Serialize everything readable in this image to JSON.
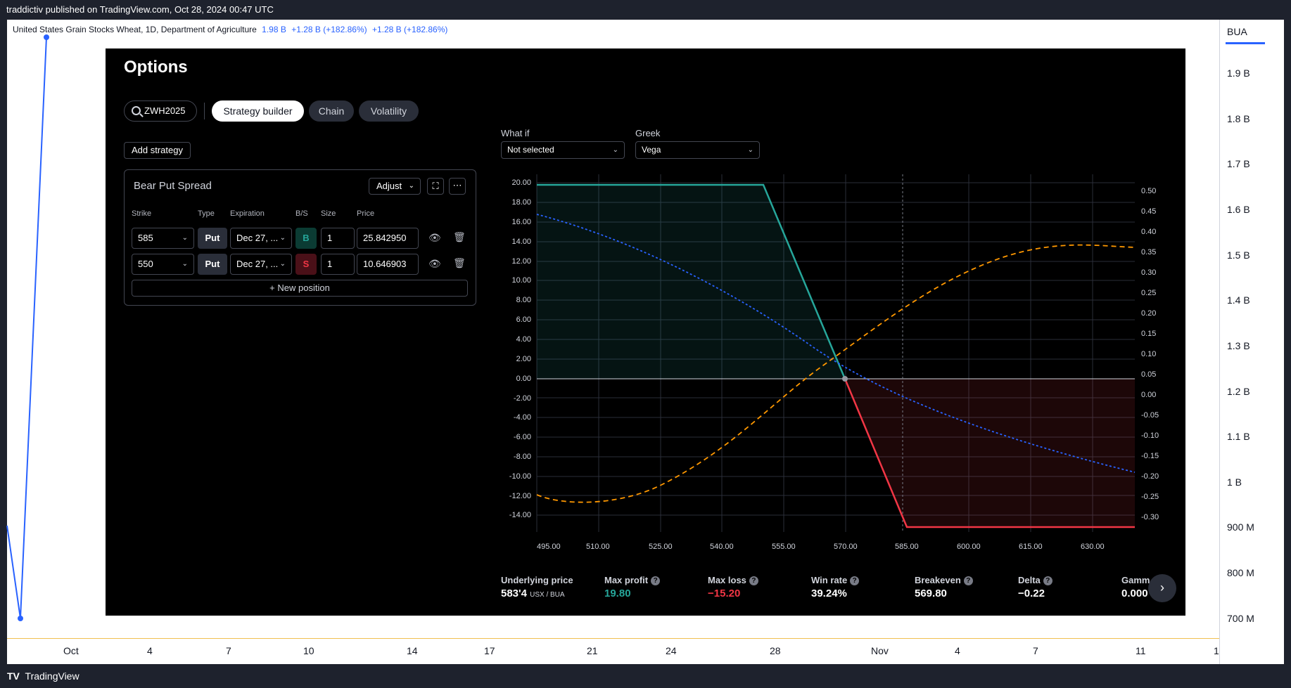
{
  "header": {
    "published": "traddictiv published on TradingView.com, Oct 28, 2024 00:47 UTC"
  },
  "footer": {
    "brand_logo": "TV",
    "brand": "TradingView"
  },
  "chart": {
    "legend_title": "United States Grain Stocks Wheat, 1D, Department of Agriculture",
    "legend_values": [
      "1.98 B",
      "+1.28 B (+182.86%)",
      "+1.28 B (+182.86%)"
    ],
    "symbol": "BUA",
    "price_ticks": [
      "1.9 B",
      "1.8 B",
      "1.7 B",
      "1.6 B",
      "1.5 B",
      "1.4 B",
      "1.3 B",
      "1.2 B",
      "1.1 B",
      "1 B",
      "900 M",
      "800 M",
      "700 M"
    ],
    "time_ticks": [
      "Oct",
      "4",
      "7",
      "10",
      "14",
      "17",
      "21",
      "24",
      "28",
      "Nov",
      "4",
      "7",
      "11",
      "1"
    ],
    "line_color": "#2962ff"
  },
  "options": {
    "title": "Options",
    "search_value": "ZWH2025",
    "tabs": [
      "Strategy builder",
      "Chain",
      "Volatility"
    ],
    "active_tab": "Strategy builder",
    "add_strategy": "Add strategy",
    "strategy": {
      "name": "Bear Put Spread",
      "adjust": "Adjust",
      "columns": [
        "Strike",
        "Type",
        "Expiration",
        "B/S",
        "Size",
        "Price"
      ],
      "rows": [
        {
          "strike": "585",
          "type": "Put",
          "expiration": "Dec 27, ...",
          "bs": "B",
          "size": "1",
          "price": "25.842950"
        },
        {
          "strike": "550",
          "type": "Put",
          "expiration": "Dec 27, ...",
          "bs": "S",
          "size": "1",
          "price": "10.646903"
        }
      ],
      "new_position": "New position"
    },
    "what_if": {
      "label": "What if",
      "value": "Not selected"
    },
    "greek": {
      "label": "Greek",
      "value": "Vega"
    },
    "payoff": {
      "y_left": [
        "20.00",
        "18.00",
        "16.00",
        "14.00",
        "12.00",
        "10.00",
        "8.00",
        "6.00",
        "4.00",
        "2.00",
        "0.00",
        "-2.00",
        "-4.00",
        "-6.00",
        "-8.00",
        "-10.00",
        "-12.00",
        "-14.00"
      ],
      "y_right": [
        "0.50",
        "0.45",
        "0.40",
        "0.35",
        "0.30",
        "0.25",
        "0.20",
        "0.15",
        "0.10",
        "0.05",
        "0.00",
        "-0.05",
        "-0.10",
        "-0.15",
        "-0.20",
        "-0.25",
        "-0.30"
      ],
      "x": [
        "495.00",
        "510.00",
        "525.00",
        "540.00",
        "555.00",
        "570.00",
        "585.00",
        "600.00",
        "615.00",
        "630.00"
      ],
      "colors": {
        "profit": "#26a69a",
        "loss": "#f23645",
        "vega": "#ff9800",
        "delta": "#2962ff"
      }
    },
    "stats": [
      {
        "label": "Underlying price",
        "value": "583'4",
        "unit": "USX / BUA",
        "color": "#ffffff"
      },
      {
        "label": "Max profit",
        "value": "19.80",
        "color": "#26a69a"
      },
      {
        "label": "Max loss",
        "value": "−15.20",
        "color": "#f23645"
      },
      {
        "label": "Win rate",
        "value": "39.24%",
        "color": "#ffffff"
      },
      {
        "label": "Breakeven",
        "value": "569.80",
        "color": "#ffffff"
      },
      {
        "label": "Delta",
        "value": "−0.22",
        "color": "#ffffff"
      },
      {
        "label": "Gamma",
        "value": "0.000",
        "color": "#ffffff"
      }
    ]
  }
}
